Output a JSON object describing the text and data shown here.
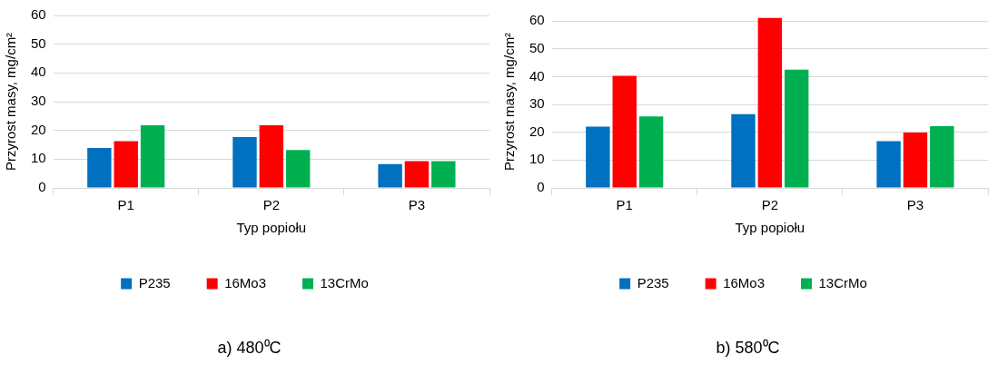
{
  "chart_data": [
    {
      "type": "bar",
      "title": "a) 480⁰C",
      "xlabel": "Typ popiołu",
      "ylabel": "Przyrost masy, mg/cm²",
      "categories": [
        "P1",
        "P2",
        "P3"
      ],
      "series": [
        {
          "name": "P235",
          "color": "#0070c0",
          "values": [
            13.9,
            17.7,
            8.3
          ]
        },
        {
          "name": "16Mo3",
          "color": "#ff0000",
          "values": [
            16.3,
            21.8,
            9.3
          ]
        },
        {
          "name": "13CrMo",
          "color": "#00b050",
          "values": [
            21.8,
            13.2,
            9.3
          ]
        }
      ],
      "ylim": [
        0,
        60
      ],
      "yticks": [
        0,
        10,
        20,
        30,
        40,
        50,
        60
      ],
      "grid": "y",
      "legend": "bottom"
    },
    {
      "type": "bar",
      "title": "b) 580⁰C",
      "xlabel": "Typ popiołu",
      "ylabel": "Przyrost masy, mg/cm²",
      "categories": [
        "P1",
        "P2",
        "P3"
      ],
      "series": [
        {
          "name": "P235",
          "color": "#0070c0",
          "values": [
            22.0,
            26.5,
            16.8
          ]
        },
        {
          "name": "16Mo3",
          "color": "#ff0000",
          "values": [
            40.3,
            61.1,
            19.9
          ]
        },
        {
          "name": "13CrMo",
          "color": "#00b050",
          "values": [
            25.7,
            42.5,
            22.2
          ]
        }
      ],
      "ylim": [
        0,
        62
      ],
      "yticks": [
        0,
        10,
        20,
        30,
        40,
        50,
        60
      ],
      "grid": "y",
      "legend": "bottom"
    }
  ]
}
